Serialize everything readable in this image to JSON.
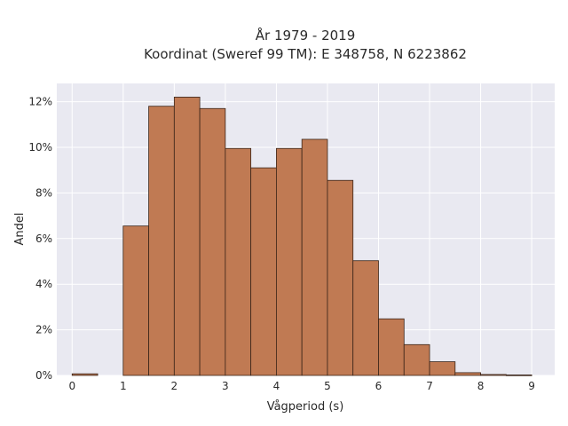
{
  "chart_data": {
    "type": "bar",
    "title_lines": [
      "År 1979 - 2019",
      "Koordinat (Sweref 99 TM): E 348758, N 6223862"
    ],
    "xlabel": "Vågperiod (s)",
    "ylabel": "Andel",
    "bin_width": 0.5,
    "bin_starts": [
      0,
      0.5,
      1,
      1.5,
      2,
      2.5,
      3,
      3.5,
      4,
      4.5,
      5,
      5.5,
      6,
      6.5,
      7,
      7.5,
      8,
      8.5
    ],
    "values": [
      0.0007,
      0.0,
      0.0655,
      0.118,
      0.122,
      0.117,
      0.0995,
      0.091,
      0.0995,
      0.1035,
      0.0855,
      0.0503,
      0.0248,
      0.0135,
      0.006,
      0.0012,
      0.0004,
      0.0002
    ],
    "xticks": [
      0,
      1,
      2,
      3,
      4,
      5,
      6,
      7,
      8,
      9
    ],
    "xtick_labels": [
      "0",
      "1",
      "2",
      "3",
      "4",
      "5",
      "6",
      "7",
      "8",
      "9"
    ],
    "xlim": [
      -0.3,
      9.45
    ],
    "yticks": [
      0,
      0.02,
      0.04,
      0.06,
      0.08,
      0.1,
      0.12
    ],
    "ytick_labels": [
      "0%",
      "2%",
      "4%",
      "6%",
      "8%",
      "10%",
      "12%"
    ],
    "ylim": [
      0,
      0.128
    ],
    "grid": true,
    "colors": {
      "bar": "#c07a53",
      "background": "#e9e9f1",
      "grid": "#ffffff",
      "edge": "#3a2418"
    }
  }
}
